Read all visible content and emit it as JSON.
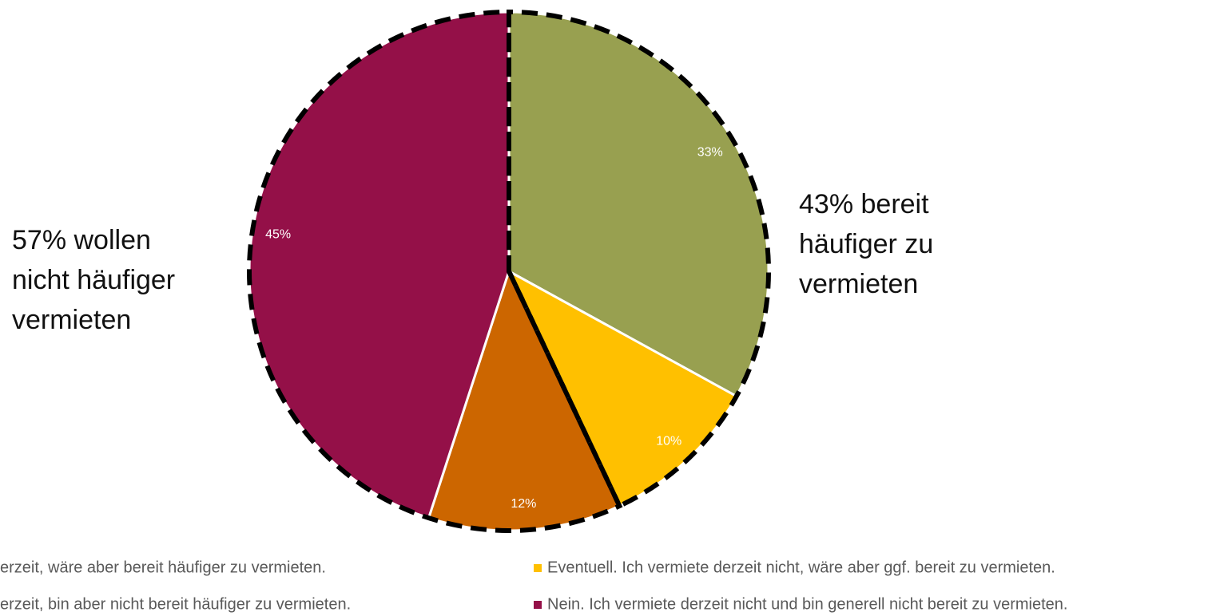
{
  "chart_data": {
    "type": "pie",
    "categories": [
      "erzeit, wäre aber bereit häufiger zu vermieten.",
      "Eventuell. Ich vermiete derzeit nicht, wäre aber ggf. bereit zu vermieten.",
      "erzeit, bin aber nicht bereit häufiger zu vermieten.",
      "Nein. Ich vermiete derzeit nicht und bin generell nicht bereit zu vermieten."
    ],
    "values": [
      33,
      10,
      12,
      45
    ],
    "value_labels": [
      "33%",
      "10%",
      "12%",
      "45%"
    ],
    "colors": [
      "#98a050",
      "#ffc000",
      "#cc6600",
      "#941048"
    ],
    "annotations": [
      [
        "43% bereit",
        "häufiger zu",
        "vermieten"
      ],
      [
        "57% wollen",
        "nicht häufiger",
        "vermieten"
      ]
    ]
  }
}
